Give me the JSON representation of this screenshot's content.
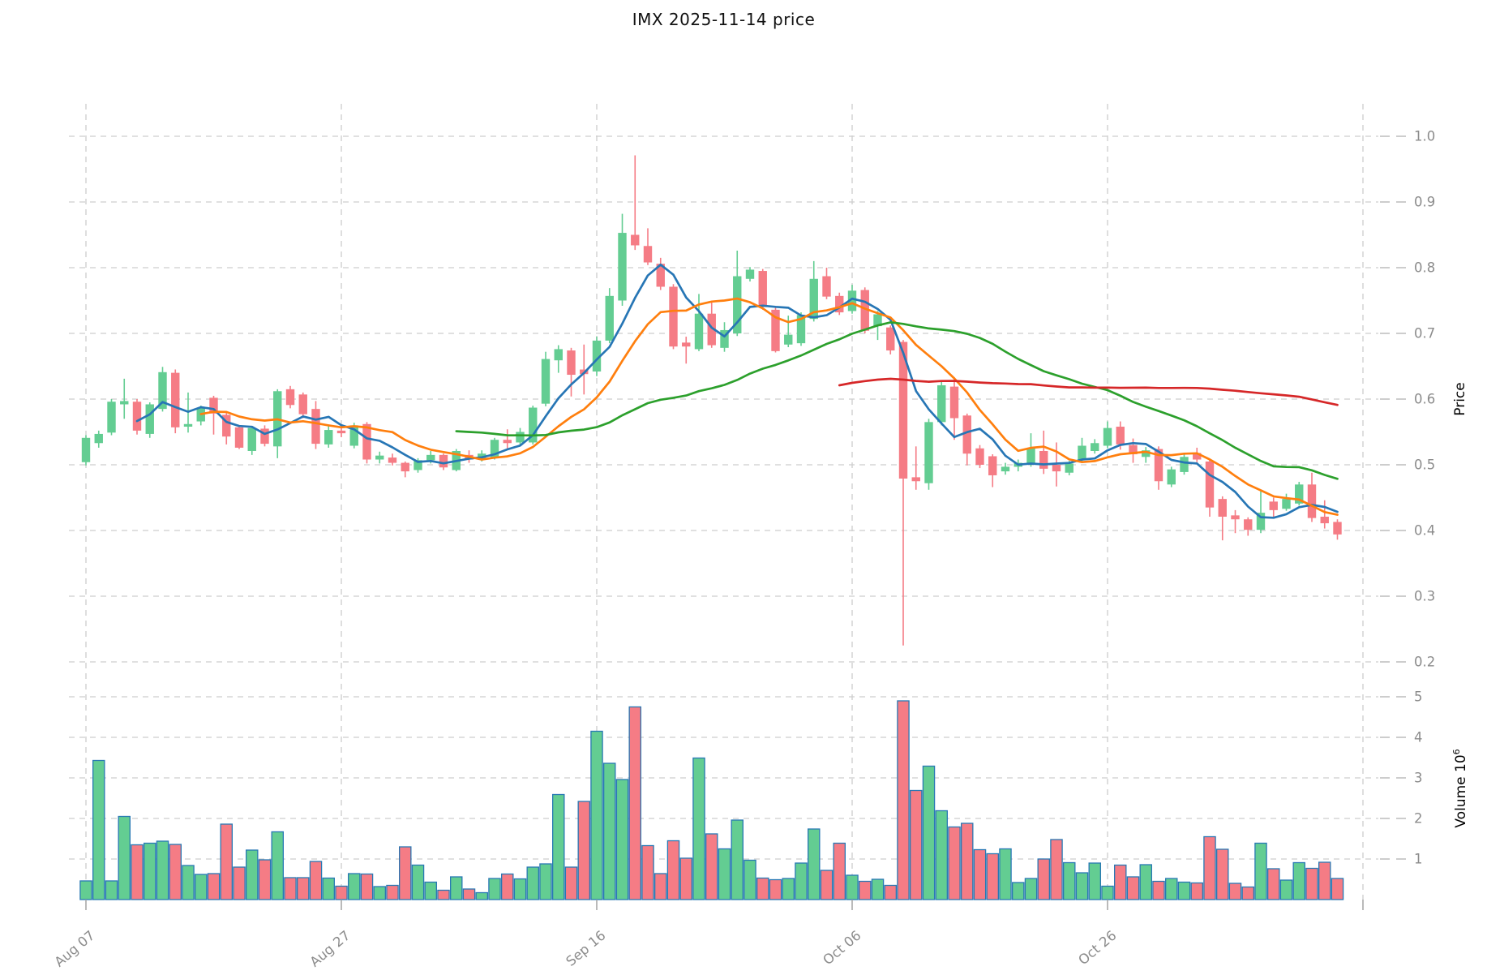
{
  "title": "IMX  2025-11-14  price",
  "axes": {
    "price_label": "Price",
    "volume_label_base": "Volume  10",
    "volume_label_sup": "6",
    "price_ticks": [
      1.0,
      0.9,
      0.8,
      0.7,
      0.6,
      0.5,
      0.4,
      0.3,
      0.2
    ],
    "volume_ticks": [
      5,
      4,
      3,
      2,
      1
    ],
    "x_ticks": [
      {
        "index": 0,
        "label": "Aug 07"
      },
      {
        "index": 20,
        "label": "Aug 27"
      },
      {
        "index": 40,
        "label": "Sep 16"
      },
      {
        "index": 60,
        "label": "Oct 06"
      },
      {
        "index": 80,
        "label": "Oct 26"
      },
      {
        "index": 100,
        "label": ""
      }
    ]
  },
  "colors": {
    "up": "#63CD92",
    "down": "#F57C85",
    "volume_edge": "#2878B4",
    "sma5": "#2776B5",
    "sma10": "#FF7F0E",
    "sma30": "#2CA02C",
    "sma60": "#D62728",
    "grid": "#CDCDCD",
    "tick_text": "#8B8B8B",
    "tick_mark": "#A8A8A8"
  },
  "chart_data": {
    "type": "candlestick_volume",
    "title": "IMX  2025-11-14  price",
    "price_ylim": [
      0.2,
      1.0
    ],
    "volume_ylim": [
      0,
      5
    ],
    "volume_unit": "10^6",
    "grid": "dashed",
    "mav_windows": [
      5,
      10,
      30,
      60
    ],
    "x_tick_labels": [
      "Aug 07",
      "Aug 27",
      "Sep 16",
      "Oct 06",
      "Oct 26"
    ],
    "open": [
      0.504,
      0.533,
      0.549,
      0.592,
      0.596,
      0.547,
      0.585,
      0.64,
      0.558,
      0.566,
      0.602,
      0.576,
      0.557,
      0.521,
      0.555,
      0.528,
      0.615,
      0.607,
      0.585,
      0.531,
      0.552,
      0.529,
      0.562,
      0.508,
      0.511,
      0.503,
      0.492,
      0.507,
      0.515,
      0.492,
      0.515,
      0.508,
      0.511,
      0.538,
      0.534,
      0.534,
      0.593,
      0.659,
      0.674,
      0.645,
      0.642,
      0.689,
      0.75,
      0.85,
      0.833,
      0.806,
      0.771,
      0.686,
      0.676,
      0.73,
      0.678,
      0.7,
      0.783,
      0.795,
      0.736,
      0.683,
      0.685,
      0.722,
      0.787,
      0.757,
      0.734,
      0.766,
      0.711,
      0.709,
      0.687,
      0.481,
      0.472,
      0.565,
      0.619,
      0.575,
      0.525,
      0.513,
      0.49,
      0.497,
      0.5,
      0.521,
      0.5,
      0.488,
      0.508,
      0.521,
      0.529,
      0.558,
      0.53,
      0.512,
      0.524,
      0.47,
      0.489,
      0.518,
      0.505,
      0.448,
      0.423,
      0.417,
      0.401,
      0.444,
      0.433,
      0.441,
      0.47,
      0.421,
      0.413
    ],
    "high": [
      0.545,
      0.552,
      0.6,
      0.631,
      0.6,
      0.595,
      0.649,
      0.645,
      0.61,
      0.59,
      0.605,
      0.58,
      0.56,
      0.558,
      0.56,
      0.615,
      0.62,
      0.61,
      0.597,
      0.559,
      0.558,
      0.564,
      0.565,
      0.52,
      0.517,
      0.505,
      0.51,
      0.521,
      0.517,
      0.524,
      0.522,
      0.522,
      0.541,
      0.554,
      0.556,
      0.59,
      0.672,
      0.682,
      0.678,
      0.683,
      0.695,
      0.769,
      0.882,
      0.971,
      0.86,
      0.815,
      0.775,
      0.695,
      0.76,
      0.748,
      0.717,
      0.826,
      0.801,
      0.798,
      0.74,
      0.727,
      0.732,
      0.81,
      0.8,
      0.762,
      0.774,
      0.77,
      0.734,
      0.712,
      0.69,
      0.528,
      0.57,
      0.629,
      0.633,
      0.578,
      0.53,
      0.516,
      0.503,
      0.508,
      0.548,
      0.552,
      0.534,
      0.506,
      0.541,
      0.539,
      0.566,
      0.566,
      0.54,
      0.527,
      0.528,
      0.497,
      0.518,
      0.526,
      0.509,
      0.452,
      0.431,
      0.42,
      0.46,
      0.45,
      0.456,
      0.474,
      0.488,
      0.446,
      0.417
    ],
    "low": [
      0.499,
      0.526,
      0.545,
      0.57,
      0.546,
      0.541,
      0.581,
      0.548,
      0.549,
      0.56,
      0.546,
      0.531,
      0.524,
      0.515,
      0.528,
      0.51,
      0.586,
      0.571,
      0.524,
      0.526,
      0.542,
      0.525,
      0.502,
      0.502,
      0.499,
      0.481,
      0.488,
      0.502,
      0.492,
      0.49,
      0.503,
      0.505,
      0.508,
      0.525,
      0.53,
      0.531,
      0.589,
      0.64,
      0.604,
      0.607,
      0.635,
      0.685,
      0.742,
      0.827,
      0.804,
      0.766,
      0.676,
      0.654,
      0.673,
      0.678,
      0.672,
      0.696,
      0.779,
      0.736,
      0.671,
      0.679,
      0.681,
      0.718,
      0.752,
      0.728,
      0.73,
      0.7,
      0.69,
      0.668,
      0.225,
      0.462,
      0.462,
      0.56,
      0.538,
      0.499,
      0.495,
      0.466,
      0.485,
      0.49,
      0.497,
      0.486,
      0.467,
      0.484,
      0.504,
      0.517,
      0.525,
      0.523,
      0.503,
      0.503,
      0.462,
      0.466,
      0.485,
      0.504,
      0.421,
      0.385,
      0.396,
      0.392,
      0.396,
      0.419,
      0.43,
      0.438,
      0.413,
      0.403,
      0.386
    ],
    "close": [
      0.541,
      0.547,
      0.596,
      0.597,
      0.552,
      0.592,
      0.641,
      0.557,
      0.562,
      0.586,
      0.578,
      0.543,
      0.526,
      0.556,
      0.532,
      0.612,
      0.591,
      0.577,
      0.532,
      0.553,
      0.548,
      0.56,
      0.508,
      0.514,
      0.503,
      0.49,
      0.507,
      0.515,
      0.496,
      0.521,
      0.508,
      0.517,
      0.538,
      0.533,
      0.55,
      0.587,
      0.661,
      0.676,
      0.637,
      0.638,
      0.689,
      0.757,
      0.853,
      0.834,
      0.808,
      0.771,
      0.68,
      0.68,
      0.73,
      0.682,
      0.705,
      0.787,
      0.797,
      0.74,
      0.673,
      0.698,
      0.728,
      0.783,
      0.756,
      0.732,
      0.765,
      0.704,
      0.729,
      0.674,
      0.479,
      0.475,
      0.565,
      0.621,
      0.571,
      0.517,
      0.5,
      0.484,
      0.497,
      0.503,
      0.525,
      0.494,
      0.49,
      0.502,
      0.529,
      0.533,
      0.556,
      0.531,
      0.516,
      0.522,
      0.475,
      0.493,
      0.512,
      0.508,
      0.435,
      0.421,
      0.417,
      0.401,
      0.427,
      0.431,
      0.448,
      0.47,
      0.419,
      0.411,
      0.394
    ],
    "volume": [
      0.46,
      3.43,
      0.46,
      2.05,
      1.35,
      1.39,
      1.44,
      1.36,
      0.84,
      0.62,
      0.64,
      1.86,
      0.8,
      1.22,
      0.98,
      1.67,
      0.54,
      0.54,
      0.94,
      0.53,
      0.33,
      0.64,
      0.63,
      0.32,
      0.35,
      1.3,
      0.85,
      0.43,
      0.23,
      0.56,
      0.26,
      0.17,
      0.52,
      0.63,
      0.51,
      0.8,
      0.88,
      2.59,
      0.8,
      2.42,
      4.15,
      3.36,
      2.96,
      4.75,
      1.33,
      0.64,
      1.45,
      1.02,
      3.49,
      1.62,
      1.25,
      1.96,
      0.97,
      0.53,
      0.49,
      0.52,
      0.9,
      1.74,
      0.72,
      1.39,
      0.6,
      0.45,
      0.5,
      0.35,
      4.9,
      2.69,
      3.29,
      2.19,
      1.79,
      1.88,
      1.23,
      1.13,
      1.25,
      0.42,
      0.52,
      1.0,
      1.48,
      0.91,
      0.66,
      0.9,
      0.33,
      0.85,
      0.56,
      0.86,
      0.45,
      0.52,
      0.43,
      0.41,
      1.55,
      1.24,
      0.4,
      0.31,
      1.39,
      0.76,
      0.48,
      0.91,
      0.77,
      0.92,
      0.52
    ]
  }
}
